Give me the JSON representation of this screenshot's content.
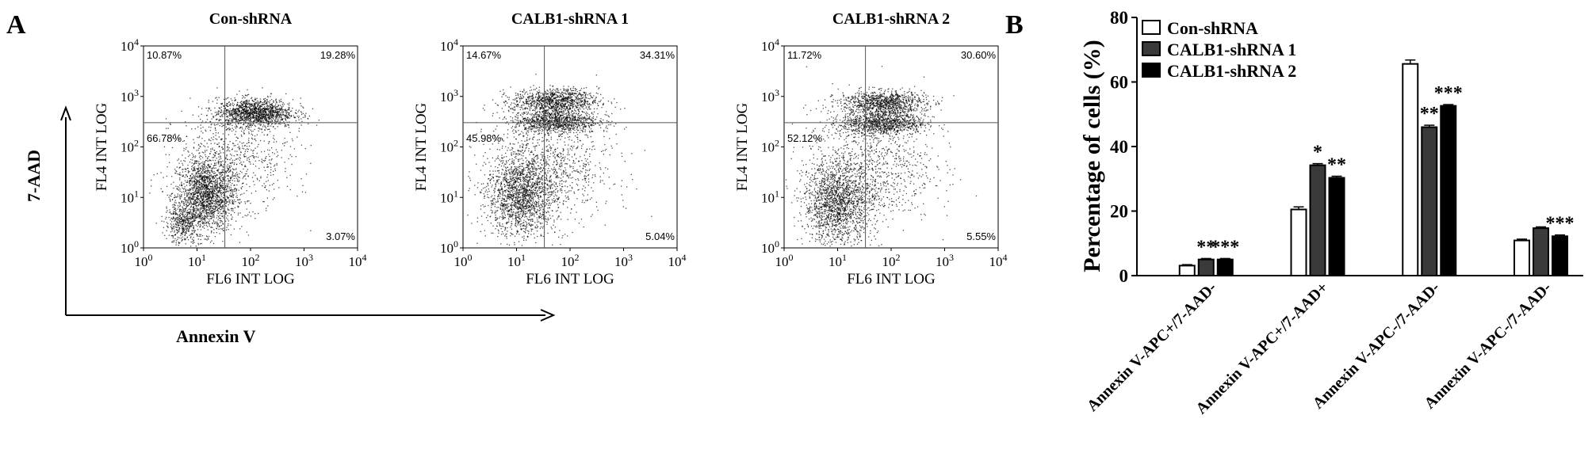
{
  "panel_a": {
    "letter": "A",
    "y_axis_label": "7-AAD",
    "x_axis_label": "Annexin V",
    "plot_x_label": "FL6 INT LOG",
    "plot_y_label": "FL4 INT LOG",
    "ticks": [
      {
        "base": "10",
        "exp": "0"
      },
      {
        "base": "10",
        "exp": "1"
      },
      {
        "base": "10",
        "exp": "2"
      },
      {
        "base": "10",
        "exp": "3"
      },
      {
        "base": "10",
        "exp": "4"
      }
    ],
    "plots": [
      {
        "title": "Con-shRNA",
        "q_ul": "10.87%",
        "q_ur": "19.28%",
        "q_ll": "66.78%",
        "q_lr": "3.07%"
      },
      {
        "title": "CALB1-shRNA 1",
        "q_ul": "14.67%",
        "q_ur": "34.31%",
        "q_ll": "45.98%",
        "q_lr": "5.04%"
      },
      {
        "title": "CALB1-shRNA 2",
        "q_ul": "11.72%",
        "q_ur": "30.60%",
        "q_ll": "52.12%",
        "q_lr": "5.55%"
      }
    ]
  },
  "panel_b": {
    "letter": "B"
  },
  "chart_data": {
    "type": "bar",
    "title": "",
    "xlabel": "",
    "ylabel": "Percentage of cells (%)",
    "ylim": [
      0,
      80
    ],
    "yticks": [
      0,
      20,
      40,
      60,
      80
    ],
    "legend_position": "top-left",
    "categories": [
      "Annexin V-APC+/7-AAD-",
      "Annexin V-APC+/7-AAD+",
      "Annexin V-APC-/7-AAD-",
      "Annexin V-APC-/7-AAD-"
    ],
    "series": [
      {
        "name": "Con-shRNA",
        "color": "#ffffff",
        "values": [
          3.1,
          20.5,
          65.6,
          10.9
        ],
        "errors": [
          0.3,
          0.8,
          1.2,
          0.4
        ],
        "significance": [
          "",
          "",
          "",
          ""
        ]
      },
      {
        "name": "CALB1-shRNA 1",
        "color": "#3a3a3a",
        "values": [
          5.0,
          34.2,
          46.0,
          14.7
        ],
        "errors": [
          0.3,
          0.5,
          0.6,
          0.4
        ],
        "significance": [
          "**",
          "*",
          "**",
          ""
        ]
      },
      {
        "name": "CALB1-shRNA 2",
        "color": "#000000",
        "values": [
          5.0,
          30.3,
          52.6,
          12.2
        ],
        "errors": [
          0.3,
          0.5,
          0.4,
          0.4
        ],
        "significance": [
          "***",
          "**",
          "***",
          "***"
        ]
      }
    ]
  }
}
